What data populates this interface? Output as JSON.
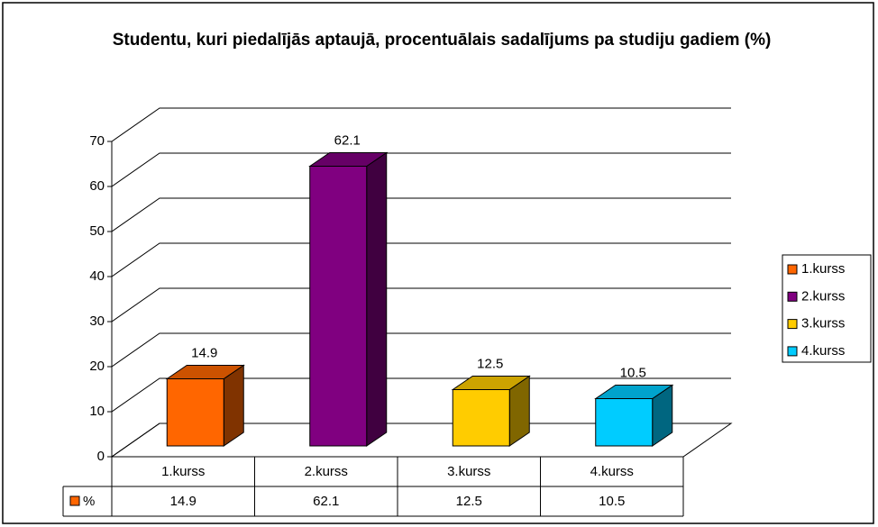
{
  "chart_data": {
    "type": "bar3d",
    "title": "Studentu, kuri piedalījās aptaujā, procentuālais sadalījums pa studiju gadiem (%)",
    "categories": [
      "1.kurss",
      "2.kurss",
      "3.kurss",
      "4.kurss"
    ],
    "series": [
      {
        "name": "%",
        "values": [
          14.9,
          62.1,
          12.5,
          10.5
        ],
        "colors": [
          "#ff6600",
          "#800080",
          "#ffcc00",
          "#00ccff"
        ]
      }
    ],
    "ylim": [
      0,
      70
    ],
    "yticks": [
      0,
      10,
      20,
      30,
      40,
      50,
      60,
      70
    ],
    "grid": true,
    "legend": "right",
    "data_table": true
  }
}
